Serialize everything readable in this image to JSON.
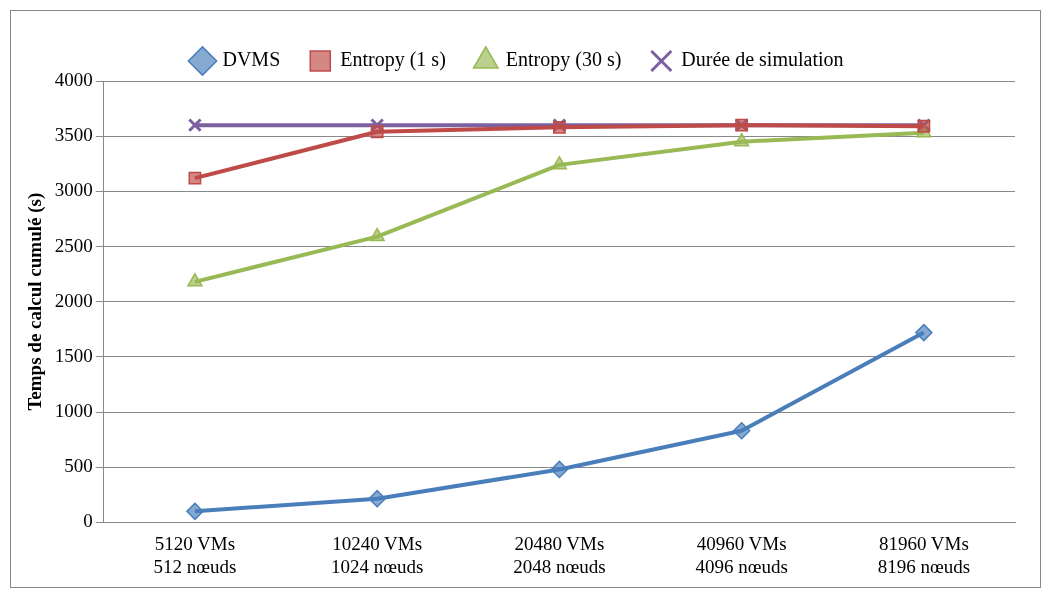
{
  "chart_data": {
    "type": "line",
    "ylabel": "Temps de calcul cumulé (s)",
    "categories": [
      "5120 VMs\n512 nœuds",
      "10240 VMs\n1024 nœuds",
      "20480 VMs\n2048 nœuds",
      "40960 VMs\n4096 nœuds",
      "81960 VMs\n8196 nœuds"
    ],
    "series": [
      {
        "name": "DVMS",
        "color": "#4a7ebb",
        "marker": "diamond",
        "values": [
          100,
          215,
          480,
          830,
          1720
        ]
      },
      {
        "name": "Entropy (1 s)",
        "color": "#be4b48",
        "marker": "square",
        "values": [
          3120,
          3540,
          3580,
          3600,
          3590
        ]
      },
      {
        "name": "Entropy (30 s)",
        "color": "#98b954",
        "marker": "triangle",
        "values": [
          2180,
          2590,
          3240,
          3450,
          3530
        ]
      },
      {
        "name": "Durée de simulation",
        "color": "#7d60a0",
        "marker": "cross",
        "values": [
          3600,
          3600,
          3600,
          3600,
          3600
        ]
      }
    ],
    "ylim": [
      0,
      4000
    ],
    "yticks": [
      0,
      500,
      1000,
      1500,
      2000,
      2500,
      3000,
      3500,
      4000
    ],
    "grid": "y",
    "legend": "top"
  }
}
